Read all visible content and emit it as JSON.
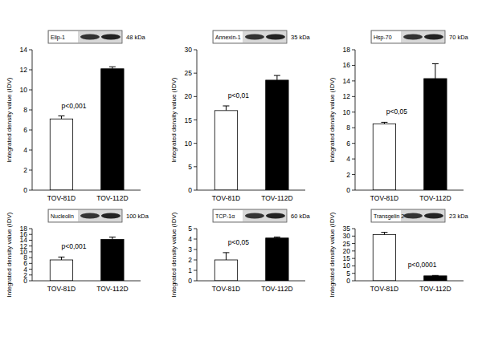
{
  "chart_data": [
    {
      "type": "bar",
      "title": "Elip-1",
      "subtitle": "48 kDa",
      "annotations": [
        "p<0,001"
      ],
      "y_label": "Integrated density value (IDV)",
      "categories": [
        "TOV-81D",
        "TOV-112D"
      ],
      "values": [
        7.1,
        12.1
      ],
      "errors": [
        0.3,
        0.2
      ],
      "colors": [
        "#ffffff",
        "#000000"
      ],
      "ylim": [
        0,
        14
      ],
      "yticks": [
        0,
        2,
        4,
        6,
        8,
        10,
        12,
        14
      ]
    },
    {
      "type": "bar",
      "title": "Annexin-1",
      "subtitle": "35 kDa",
      "annotations": [
        "p<0,01"
      ],
      "y_label": "Integrated density value (IDV)",
      "categories": [
        "TOV-81D",
        "TOV-112D"
      ],
      "values": [
        17,
        23.5
      ],
      "errors": [
        1,
        1
      ],
      "colors": [
        "#ffffff",
        "#000000"
      ],
      "ylim": [
        0,
        30
      ],
      "yticks": [
        0,
        5,
        10,
        15,
        20,
        25,
        30
      ]
    },
    {
      "type": "bar",
      "title": "Hsp-70",
      "subtitle": "70 kDa",
      "annotations": [
        "p<0,05"
      ],
      "y_label": "Integrated density value (IDV)",
      "categories": [
        "TOV-81D",
        "TOV-112D"
      ],
      "values": [
        8.5,
        14.3
      ],
      "errors": [
        0.2,
        1.9
      ],
      "colors": [
        "#ffffff",
        "#000000"
      ],
      "ylim": [
        0,
        18
      ],
      "yticks": [
        0,
        2,
        4,
        6,
        8,
        10,
        12,
        14,
        16,
        18
      ]
    },
    {
      "type": "bar",
      "title": "Nucleolin",
      "subtitle": "100 kDa",
      "annotations": [
        "p<0,001"
      ],
      "y_label": "Integrated density value (IDV)",
      "categories": [
        "TOV-81D",
        "TOV-112D"
      ],
      "values": [
        7.2,
        14.3
      ],
      "errors": [
        1,
        0.8
      ],
      "colors": [
        "#ffffff",
        "#000000"
      ],
      "ylim": [
        0,
        18
      ],
      "yticks": [
        0,
        2,
        4,
        6,
        8,
        10,
        12,
        14,
        16,
        18
      ]
    },
    {
      "type": "bar",
      "title": "TCP-1α",
      "subtitle": "60 kDa",
      "annotations": [
        "p<0,05"
      ],
      "y_label": "Integrated density value (IDV)",
      "categories": [
        "TOV-81D",
        "TOV-112D"
      ],
      "values": [
        2.0,
        4.1
      ],
      "errors": [
        0.7,
        0.1
      ],
      "colors": [
        "#ffffff",
        "#000000"
      ],
      "ylim": [
        0,
        5
      ],
      "yticks": [
        0,
        1,
        2,
        3,
        4,
        5
      ]
    },
    {
      "type": "bar",
      "title": "Transgelin 2",
      "subtitle": "23 kDa",
      "annotations": [
        "p<0,0001"
      ],
      "y_label": "Integrated density value (IDV)",
      "categories": [
        "TOV-81D",
        "TOV-112D"
      ],
      "values": [
        31,
        3.3
      ],
      "errors": [
        1.5,
        0.3
      ],
      "colors": [
        "#ffffff",
        "#000000"
      ],
      "ylim": [
        0,
        35
      ],
      "yticks": [
        0,
        5,
        10,
        15,
        20,
        25,
        30,
        35
      ]
    }
  ]
}
